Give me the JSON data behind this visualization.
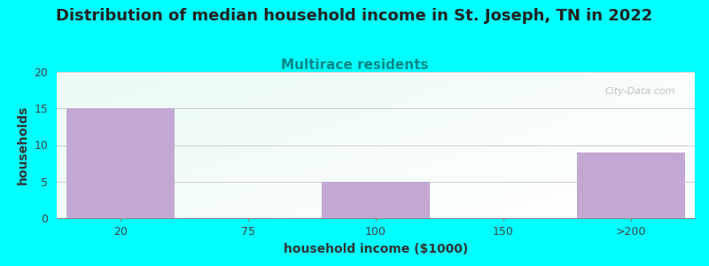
{
  "title": "Distribution of median household income in St. Joseph, TN in 2022",
  "subtitle": "Multirace residents",
  "xlabel": "household income ($1000)",
  "ylabel": "households",
  "background_color": "#00FFFF",
  "bar_color": "#C4A8D4",
  "categories": [
    "20",
    "75",
    "100",
    "150",
    ">200"
  ],
  "values": [
    15,
    0,
    5,
    0,
    9
  ],
  "bar_positions": [
    0,
    1,
    2,
    3,
    4
  ],
  "bar_width": 0.85,
  "ylim": [
    0,
    20
  ],
  "yticks": [
    0,
    5,
    10,
    15,
    20
  ],
  "title_fontsize": 13,
  "subtitle_fontsize": 11,
  "subtitle_color": "#008888",
  "axis_label_fontsize": 10,
  "tick_fontsize": 9,
  "watermark": "City-Data.com",
  "watermark_color": "#aaaaaa",
  "gradient_colors_left": "#d8f0d0",
  "gradient_colors_right": "#f8fff8",
  "gradient_top": "#f5fffa",
  "gradient_bottom": "#e8f5e0"
}
